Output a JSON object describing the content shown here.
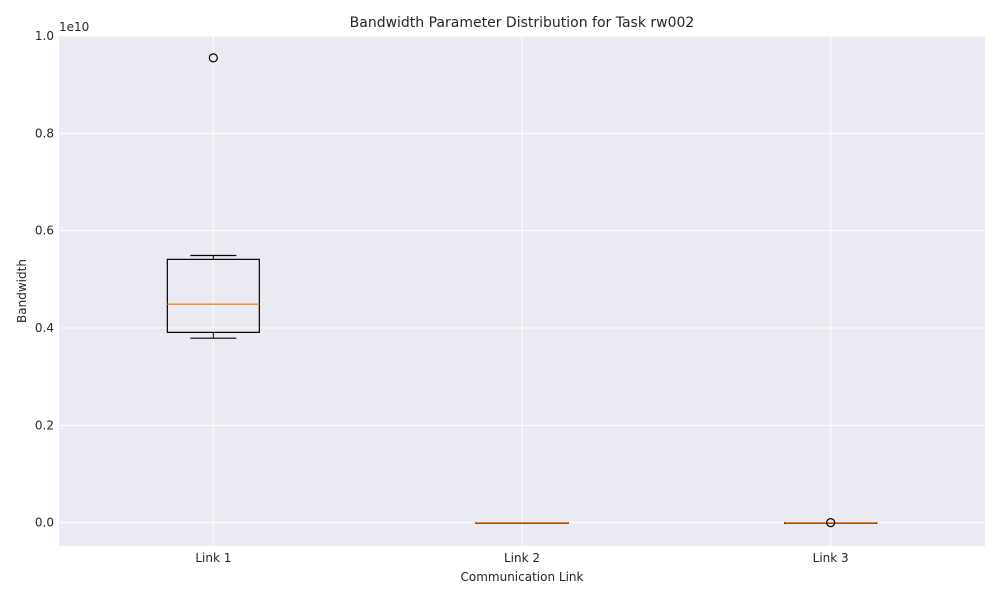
{
  "chart_data": {
    "type": "box",
    "title": "Bandwidth Parameter Distribution for Task rw002",
    "xlabel": "Communication Link",
    "ylabel": "Bandwidth",
    "offset_label": "1e10",
    "ylim": [
      -0.048,
      1.0
    ],
    "yticks": [
      0.0,
      0.2,
      0.4,
      0.6,
      0.8,
      1.0
    ],
    "ytick_labels": [
      "0.0",
      "0.2",
      "0.4",
      "0.6",
      "0.8",
      "1.0"
    ],
    "grid": true,
    "categories": [
      "Link 1",
      "Link 2",
      "Link 3"
    ],
    "boxes": [
      {
        "label": "Link 1",
        "whisker_low": 0.379,
        "q1": 0.391,
        "median": 0.449,
        "q3": 0.541,
        "whisker_high": 0.549,
        "outliers": [
          0.955
        ]
      },
      {
        "label": "Link 2",
        "whisker_low": 0.0,
        "q1": 0.0,
        "median": 0.0,
        "q3": 0.0,
        "whisker_high": 0.0,
        "outliers": []
      },
      {
        "label": "Link 3",
        "whisker_low": 0.0,
        "q1": 0.0,
        "median": 0.0,
        "q3": 0.0,
        "whisker_high": 0.0,
        "outliers": [
          0.0
        ]
      }
    ],
    "colors": {
      "background": "#eaeaf2",
      "grid": "#ffffff",
      "box": "#000000",
      "median": "#ff7f0e"
    }
  }
}
